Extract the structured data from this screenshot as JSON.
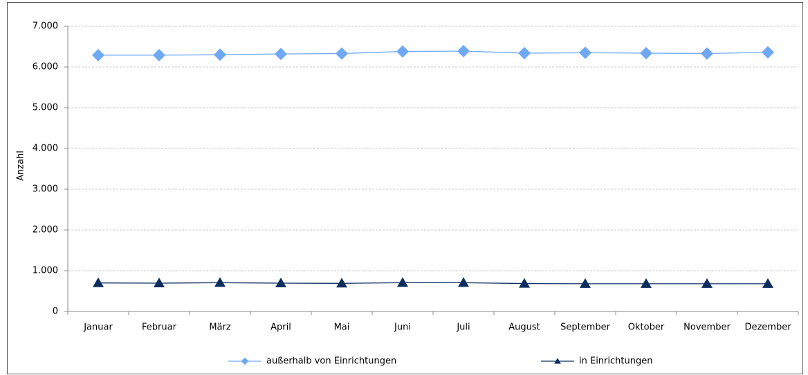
{
  "chart_data": {
    "type": "line",
    "y_label": "Anzahl",
    "categories": [
      "Januar",
      "Februar",
      "März",
      "April",
      "Mai",
      "Juni",
      "Juli",
      "August",
      "September",
      "Oktober",
      "November",
      "Dezember"
    ],
    "series": [
      {
        "name": "außerhalb von Einrichtungen",
        "color": "#6fa8f5",
        "marker": "diamond",
        "values": [
          6290,
          6290,
          6300,
          6320,
          6330,
          6380,
          6390,
          6340,
          6350,
          6340,
          6330,
          6360
        ]
      },
      {
        "name": "in Einrichtungen",
        "color": "#0c2d5e",
        "marker": "triangle",
        "values": [
          700,
          695,
          705,
          695,
          690,
          705,
          705,
          685,
          680,
          680,
          680,
          680
        ]
      }
    ],
    "ylim": [
      0,
      7000
    ],
    "yticks": [
      0,
      {
        "value": 1000,
        "label": "1.000"
      },
      {
        "value": 2000,
        "label": "2.000"
      },
      {
        "value": 3000,
        "label": "3.000"
      },
      {
        "value": 4000,
        "label": "4.000"
      },
      {
        "value": 5000,
        "label": "5.000"
      },
      {
        "value": 6000,
        "label": "6.000"
      },
      {
        "value": 7000,
        "label": "7.000"
      }
    ],
    "grid": true,
    "legend": "bottom"
  }
}
